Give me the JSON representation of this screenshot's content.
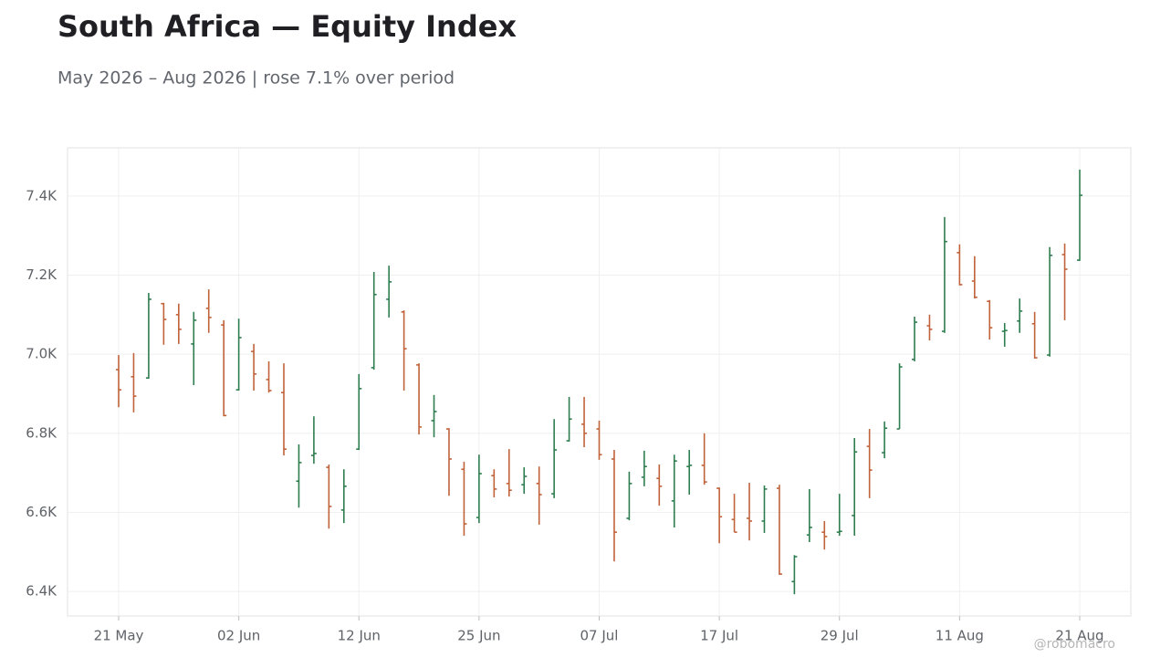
{
  "chart_data": {
    "type": "ohlc",
    "title": "South Africa — Equity Index",
    "subtitle": "May 2026 – Aug 2026 | rose 7.1% over period",
    "watermark": "@robomacro",
    "categories": [
      "21 May",
      null,
      null,
      null,
      null,
      null,
      null,
      null,
      "02 Jun",
      null,
      null,
      null,
      null,
      null,
      null,
      null,
      "12 Jun",
      null,
      null,
      null,
      null,
      null,
      null,
      null,
      "25 Jun",
      null,
      null,
      null,
      null,
      null,
      null,
      null,
      "07 Jul",
      null,
      null,
      null,
      null,
      null,
      null,
      null,
      "17 Jul",
      null,
      null,
      null,
      null,
      null,
      null,
      null,
      "29 Jul",
      null,
      null,
      null,
      null,
      null,
      null,
      null,
      "11 Aug",
      null,
      null,
      null,
      null,
      null,
      null,
      null,
      "21 Aug"
    ],
    "open": [
      6961,
      6943,
      6940,
      7128,
      7100,
      7026,
      7116,
      7074,
      6910,
      7007,
      6936,
      6903,
      6679,
      6744,
      6714,
      6606,
      6760,
      6966,
      7139,
      7107,
      6973,
      6832,
      6811,
      6709,
      6587,
      6693,
      6673,
      6670,
      6673,
      6647,
      6781,
      6823,
      6811,
      6735,
      6585,
      6689,
      6686,
      6629,
      6716,
      6719,
      6661,
      6582,
      6585,
      6578,
      6661,
      6425,
      6543,
      6550,
      6550,
      6592,
      6767,
      6751,
      6811,
      6987,
      7072,
      7058,
      7257,
      7185,
      7134,
      7058,
      7084,
      7077,
      6998,
      7252,
      7238
    ],
    "high": [
      6998,
      7003,
      7155,
      7130,
      7128,
      7107,
      7164,
      7086,
      7090,
      7026,
      6982,
      6977,
      6772,
      6843,
      6721,
      6709,
      6950,
      7208,
      7224,
      7111,
      6977,
      6897,
      6813,
      6728,
      6746,
      6709,
      6760,
      6714,
      6716,
      6836,
      6892,
      6892,
      6832,
      6758,
      6703,
      6756,
      6721,
      6746,
      6758,
      6800,
      6663,
      6647,
      6675,
      6668,
      6670,
      6492,
      6659,
      6578,
      6647,
      6788,
      6811,
      6830,
      6977,
      7095,
      7100,
      7347,
      7278,
      7248,
      7137,
      7079,
      7141,
      7107,
      7271,
      7280,
      7467
    ],
    "low": [
      6866,
      6853,
      6938,
      7024,
      7026,
      6922,
      7054,
      6843,
      6908,
      6908,
      6903,
      6744,
      6612,
      6723,
      6559,
      6573,
      6758,
      6961,
      7093,
      6908,
      6797,
      6790,
      6642,
      6541,
      6573,
      6638,
      6640,
      6647,
      6569,
      6636,
      6779,
      6765,
      6733,
      6476,
      6580,
      6666,
      6617,
      6562,
      6645,
      6670,
      6522,
      6550,
      6529,
      6548,
      6442,
      6393,
      6525,
      6506,
      6541,
      6541,
      6636,
      6737,
      6811,
      6982,
      7035,
      7054,
      7174,
      7141,
      7037,
      7019,
      7054,
      6989,
      6994,
      7086,
      7236
    ],
    "close": [
      6910,
      6894,
      7139,
      7088,
      7063,
      7086,
      7093,
      6845,
      7042,
      6950,
      6908,
      6760,
      6726,
      6749,
      6615,
      6666,
      6913,
      7151,
      7183,
      7014,
      6816,
      6855,
      6735,
      6571,
      6698,
      6659,
      6656,
      6691,
      6645,
      6758,
      6836,
      6800,
      6746,
      6550,
      6673,
      6716,
      6666,
      6730,
      6719,
      6677,
      6589,
      6550,
      6578,
      6659,
      6444,
      6488,
      6562,
      6539,
      6552,
      6753,
      6707,
      6813,
      6968,
      7081,
      7063,
      7285,
      7176,
      7144,
      7067,
      7060,
      7109,
      6991,
      7250,
      7215,
      7402
    ],
    "up_color": "#2e7d4f",
    "down_color": "#c0623a",
    "ylim": [
      6338,
      7522
    ],
    "yticks": [
      {
        "value": 6400,
        "label": "6.4K"
      },
      {
        "value": 6600,
        "label": "6.6K"
      },
      {
        "value": 6800,
        "label": "6.8K"
      },
      {
        "value": 7000,
        "label": "7.0K"
      },
      {
        "value": 7200,
        "label": "7.2K"
      },
      {
        "value": 7400,
        "label": "7.4K"
      }
    ],
    "grid": true
  }
}
